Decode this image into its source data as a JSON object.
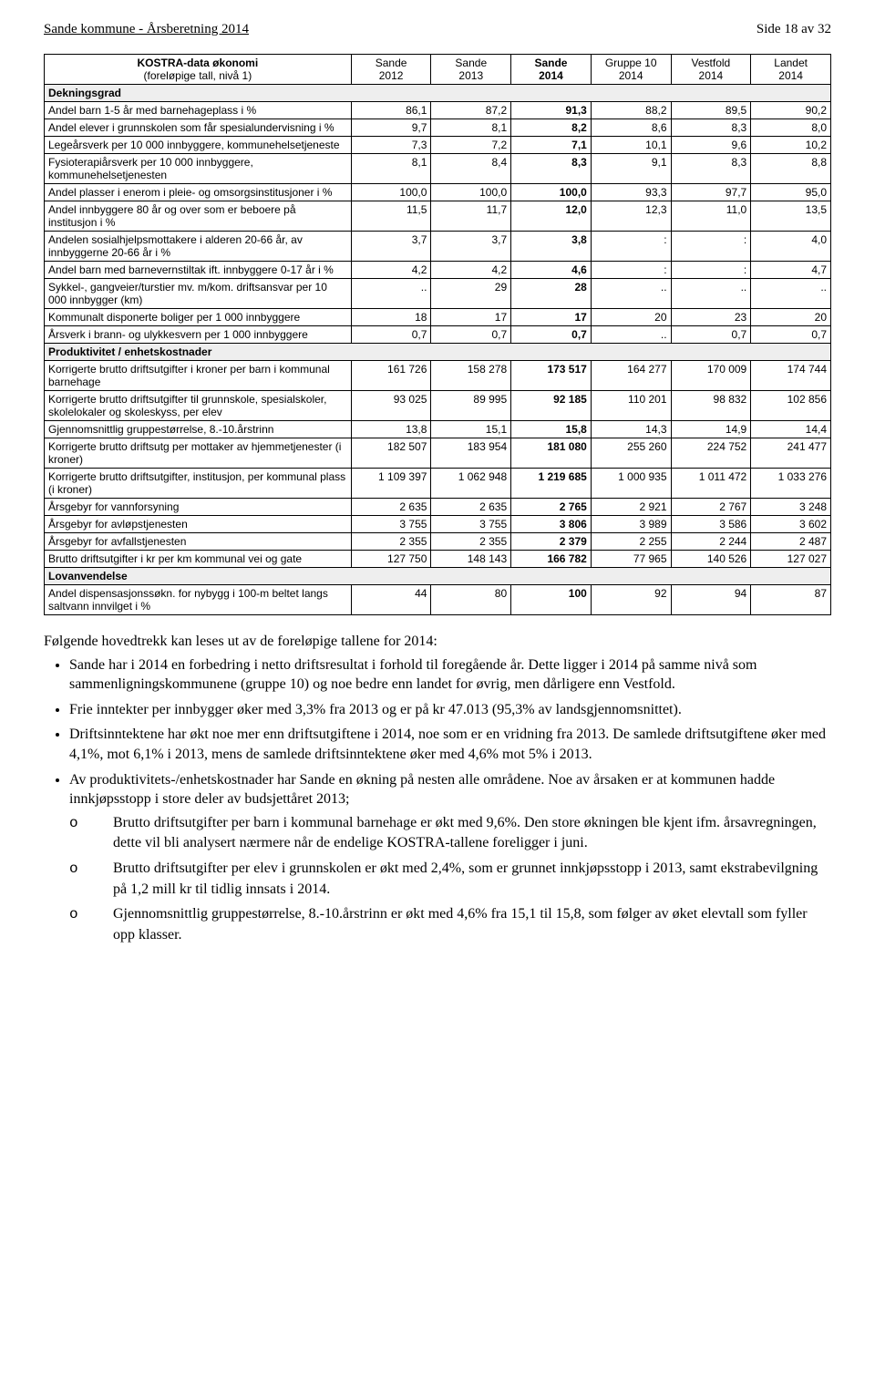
{
  "header": {
    "left": "Sande kommune  - Årsberetning 2014",
    "right": "Side 18 av 32"
  },
  "table": {
    "title_col": {
      "line1": "KOSTRA-data økonomi",
      "line2": "(foreløpige tall, nivå 1)"
    },
    "columns": [
      {
        "line1": "Sande",
        "line2": "2012"
      },
      {
        "line1": "Sande",
        "line2": "2013"
      },
      {
        "line1": "Sande",
        "line2": "2014",
        "bold": true
      },
      {
        "line1": "Gruppe 10",
        "line2": "2014"
      },
      {
        "line1": "Vestfold",
        "line2": "2014"
      },
      {
        "line1": "Landet",
        "line2": "2014"
      }
    ],
    "sections": [
      {
        "title": "Dekningsgrad",
        "rows": [
          {
            "label": "Andel barn 1-5 år med barnehageplass i %",
            "v": [
              "86,1",
              "87,2",
              "91,3",
              "88,2",
              "89,5",
              "90,2"
            ]
          },
          {
            "label": "Andel elever i grunnskolen som får spesialundervisning i %",
            "v": [
              "9,7",
              "8,1",
              "8,2",
              "8,6",
              "8,3",
              "8,0"
            ]
          },
          {
            "label": "Legeårsverk per 10 000 innbyggere, kommunehelsetjeneste",
            "v": [
              "7,3",
              "7,2",
              "7,1",
              "10,1",
              "9,6",
              "10,2"
            ]
          },
          {
            "label": "Fysioterapiårsverk per 10 000 innbyggere, kommunehelsetjenesten",
            "v": [
              "8,1",
              "8,4",
              "8,3",
              "9,1",
              "8,3",
              "8,8"
            ]
          },
          {
            "label": "Andel plasser i enerom i pleie- og omsorgsinstitusjoner i %",
            "v": [
              "100,0",
              "100,0",
              "100,0",
              "93,3",
              "97,7",
              "95,0"
            ]
          },
          {
            "label": "Andel innbyggere 80 år og over som er beboere på institusjon i %",
            "v": [
              "11,5",
              "11,7",
              "12,0",
              "12,3",
              "11,0",
              "13,5"
            ]
          },
          {
            "label": "Andelen sosialhjelpsmottakere i alderen 20-66 år, av innbyggerne 20-66 år i %",
            "v": [
              "3,7",
              "3,7",
              "3,8",
              ":",
              ":",
              "4,0"
            ]
          },
          {
            "label": "Andel barn med barnevernstiltak ift. innbyggere 0-17 år i %",
            "v": [
              "4,2",
              "4,2",
              "4,6",
              ":",
              ":",
              "4,7"
            ]
          },
          {
            "label": "Sykkel-, gangveier/turstier mv. m/kom. driftsansvar per 10 000 innbygger (km)",
            "v": [
              "..",
              "29",
              "28",
              "..",
              "..",
              ".."
            ]
          },
          {
            "label": "Kommunalt disponerte boliger per 1 000 innbyggere",
            "v": [
              "18",
              "17",
              "17",
              "20",
              "23",
              "20"
            ]
          },
          {
            "label": "Årsverk i brann- og ulykkesvern per 1 000 innbyggere",
            "v": [
              "0,7",
              "0,7",
              "0,7",
              "..",
              "0,7",
              "0,7"
            ]
          }
        ]
      },
      {
        "title": "Produktivitet / enhetskostnader",
        "rows": [
          {
            "label": "Korrigerte brutto driftsutgifter i kroner per barn i kommunal barnehage",
            "v": [
              "161 726",
              "158 278",
              "173 517",
              "164 277",
              "170 009",
              "174 744"
            ]
          },
          {
            "label": "Korrigerte brutto driftsutgifter til grunnskole, spesialskoler, skolelokaler og skoleskyss, per elev",
            "v": [
              "93 025",
              "89 995",
              "92 185",
              "110 201",
              "98 832",
              "102 856"
            ]
          },
          {
            "label": "Gjennomsnittlig gruppestørrelse, 8.-10.årstrinn",
            "v": [
              "13,8",
              "15,1",
              "15,8",
              "14,3",
              "14,9",
              "14,4"
            ]
          },
          {
            "label": "Korrigerte brutto driftsutg per mottaker av hjemmetjenester (i kroner)",
            "v": [
              "182 507",
              "183 954",
              "181 080",
              "255 260",
              "224 752",
              "241 477"
            ]
          },
          {
            "label": "Korrigerte brutto driftsutgifter, institusjon, per kommunal plass (i kroner)",
            "v": [
              "1 109 397",
              "1 062 948",
              "1 219 685",
              "1 000 935",
              "1 011 472",
              "1 033 276"
            ]
          },
          {
            "label": "Årsgebyr for vannforsyning",
            "v": [
              "2 635",
              "2 635",
              "2 765",
              "2 921",
              "2 767",
              "3 248"
            ]
          },
          {
            "label": "Årsgebyr for avløpstjenesten",
            "v": [
              "3 755",
              "3 755",
              "3 806",
              "3 989",
              "3 586",
              "3 602"
            ]
          },
          {
            "label": "Årsgebyr for avfallstjenesten",
            "v": [
              "2 355",
              "2 355",
              "2 379",
              "2 255",
              "2 244",
              "2 487"
            ]
          },
          {
            "label": "Brutto driftsutgifter i kr per km kommunal vei og gate",
            "v": [
              "127 750",
              "148 143",
              "166 782",
              "77 965",
              "140 526",
              "127 027"
            ]
          }
        ]
      },
      {
        "title": "Lovanvendelse",
        "rows": [
          {
            "label": "Andel dispensasjonssøkn. for nybygg i 100-m beltet langs saltvann innvilget i %",
            "v": [
              "44",
              "80",
              "100",
              "92",
              "94",
              "87"
            ]
          }
        ]
      }
    ],
    "bold_col_index": 2,
    "col_widths": {
      "label": "39%",
      "data": "10.16%"
    },
    "border_color": "#000000",
    "section_bg": "#eeeeee",
    "font_size_pt": 9
  },
  "body": {
    "intro": "Følgende hovedtrekk kan leses ut av de foreløpige tallene for 2014:",
    "bullets": [
      "Sande har i 2014 en forbedring i netto driftsresultat i forhold til foregående år. Dette ligger i 2014 på samme nivå som sammenligningskommunene (gruppe 10) og noe bedre enn landet for øvrig, men dårligere enn Vestfold.",
      "Frie inntekter per innbygger øker med 3,3% fra 2013 og er på kr 47.013 (95,3% av landsgjennomsnittet).",
      "Driftsinntektene har økt noe mer enn driftsutgiftene i 2014, noe som er en vridning fra 2013. De samlede driftsutgiftene øker med 4,1%, mot 6,1% i 2013, mens de samlede driftsinntektene øker med 4,6% mot 5% i 2013."
    ],
    "bullet_with_sub": {
      "text": "Av produktivitets-/enhetskostnader har Sande en økning på nesten alle områdene. Noe av årsaken er at kommunen hadde innkjøpsstopp i store deler av budsjettåret 2013;",
      "sub": [
        "Brutto driftsutgifter per barn i kommunal barnehage er økt med 9,6%. Den store økningen ble kjent ifm. årsavregningen, dette vil bli analysert nærmere når de endelige KOSTRA-tallene foreligger i juni.",
        "Brutto driftsutgifter per elev i grunnskolen er økt med 2,4%, som er grunnet innkjøpsstopp i 2013, samt ekstrabevilgning på 1,2 mill kr til tidlig innsats i 2014.",
        "Gjennomsnittlig gruppestørrelse, 8.-10.årstrinn er økt med 4,6% fra 15,1 til 15,8, som følger av øket elevtall som fyller opp klasser."
      ]
    }
  }
}
